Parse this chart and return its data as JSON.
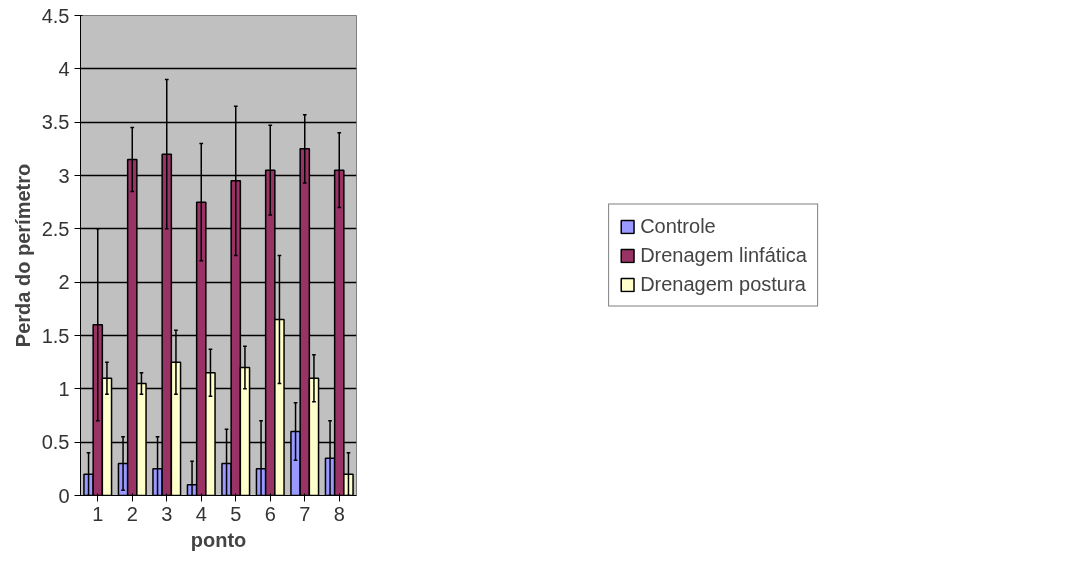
{
  "chart_data": {
    "type": "bar",
    "xlabel": "ponto",
    "ylabel": "Perda do perímetro",
    "categories": [
      "1",
      "2",
      "3",
      "4",
      "5",
      "6",
      "7",
      "8"
    ],
    "series": [
      {
        "name": "Controle",
        "color": "#9999ff",
        "values": [
          0.2,
          0.3,
          0.25,
          0.1,
          0.3,
          0.25,
          0.6,
          0.35
        ],
        "errors": [
          0.2,
          0.25,
          0.3,
          0.22,
          0.32,
          0.45,
          0.27,
          0.35
        ]
      },
      {
        "name": "Drenagem linfática",
        "color": "#993366",
        "values": [
          1.6,
          3.15,
          3.2,
          2.75,
          2.95,
          3.05,
          3.25,
          3.05
        ],
        "errors": [
          0.9,
          0.3,
          0.7,
          0.55,
          0.7,
          0.42,
          0.32,
          0.35
        ]
      },
      {
        "name": "Drenagem postura",
        "color": "#ffffcc",
        "values": [
          1.1,
          1.05,
          1.25,
          1.15,
          1.2,
          1.65,
          1.1,
          0.2
        ],
        "errors": [
          0.15,
          0.1,
          0.3,
          0.22,
          0.2,
          0.6,
          0.22,
          0.2
        ]
      }
    ],
    "ylim": [
      0,
      4.5
    ],
    "yticks": [
      0,
      0.5,
      1,
      1.5,
      2,
      2.5,
      3,
      3.5,
      4,
      4.5
    ],
    "grid": "y",
    "legend": "right"
  }
}
